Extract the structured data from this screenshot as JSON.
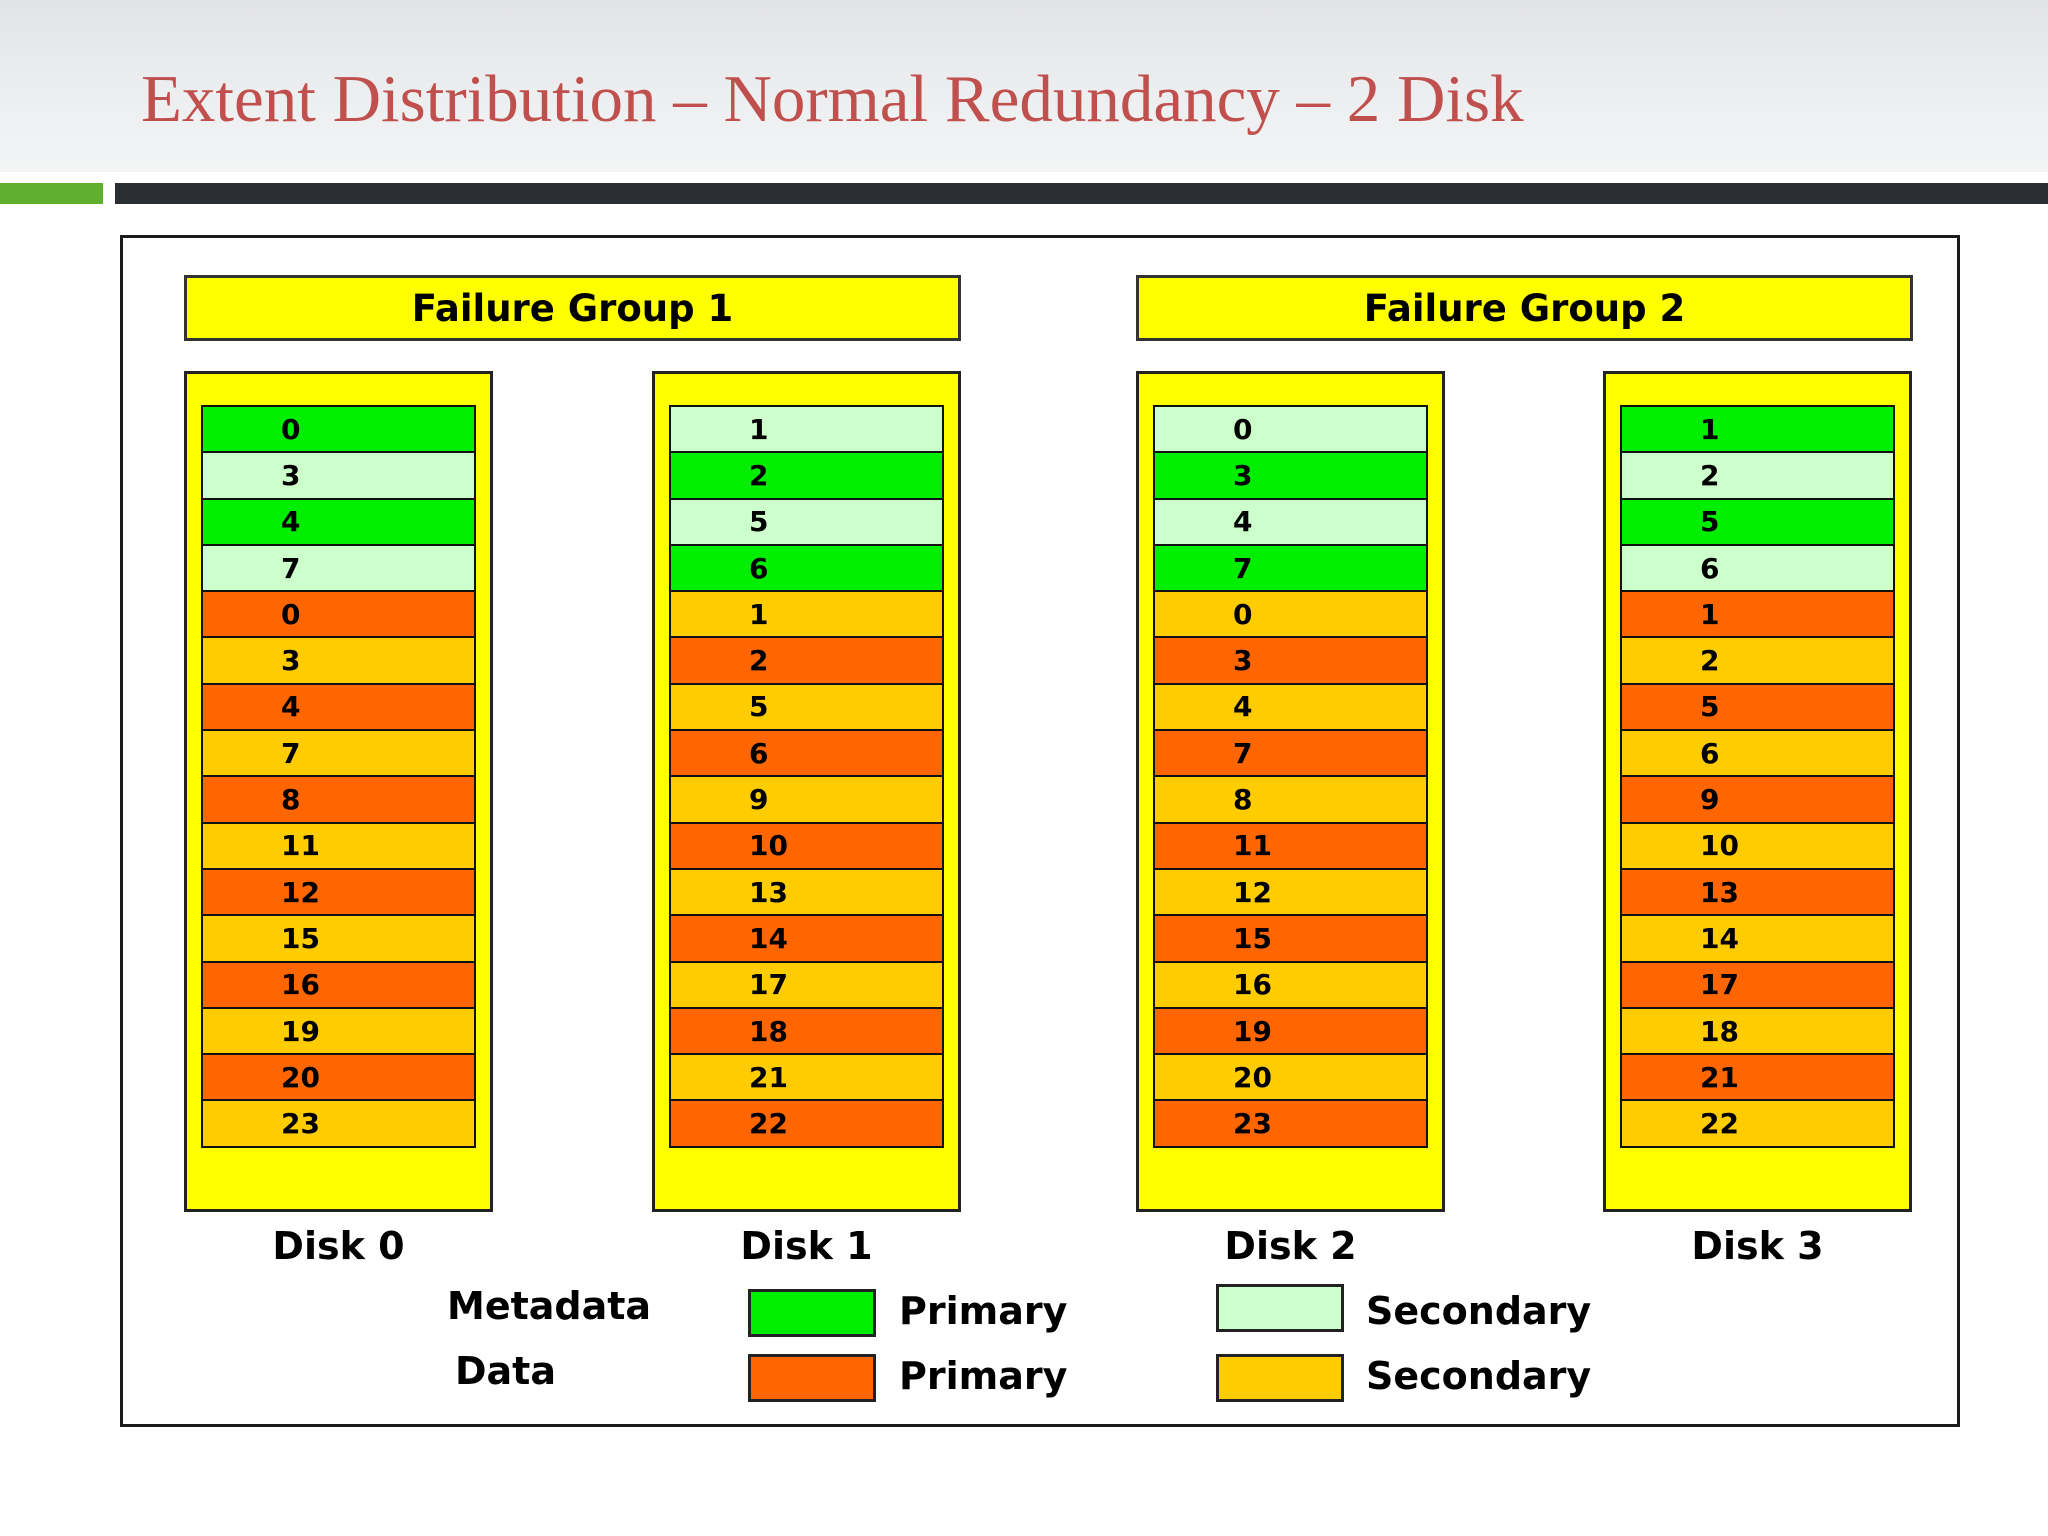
{
  "slide_title": "Extent Distribution – Normal Redundancy – 2 Disk",
  "failure_groups": [
    "Failure Group 1",
    "Failure Group 2"
  ],
  "colors": {
    "metadata_primary": "#00ee00",
    "metadata_secondary": "#ccffcc",
    "data_primary": "#ff6600",
    "data_secondary": "#ffcc00",
    "group_fill": "#ffff00",
    "title": "#c0504d"
  },
  "disks": [
    {
      "label": "Disk 0",
      "extents": [
        {
          "n": "0",
          "t": "mp"
        },
        {
          "n": "3",
          "t": "ms"
        },
        {
          "n": "4",
          "t": "mp"
        },
        {
          "n": "7",
          "t": "ms"
        },
        {
          "n": "0",
          "t": "dp"
        },
        {
          "n": "3",
          "t": "ds"
        },
        {
          "n": "4",
          "t": "dp"
        },
        {
          "n": "7",
          "t": "ds"
        },
        {
          "n": "8",
          "t": "dp"
        },
        {
          "n": "11",
          "t": "ds"
        },
        {
          "n": "12",
          "t": "dp"
        },
        {
          "n": "15",
          "t": "ds"
        },
        {
          "n": "16",
          "t": "dp"
        },
        {
          "n": "19",
          "t": "ds"
        },
        {
          "n": "20",
          "t": "dp"
        },
        {
          "n": "23",
          "t": "ds"
        }
      ]
    },
    {
      "label": "Disk 1",
      "extents": [
        {
          "n": "1",
          "t": "ms"
        },
        {
          "n": "2",
          "t": "mp"
        },
        {
          "n": "5",
          "t": "ms"
        },
        {
          "n": "6",
          "t": "mp"
        },
        {
          "n": "1",
          "t": "ds"
        },
        {
          "n": "2",
          "t": "dp"
        },
        {
          "n": "5",
          "t": "ds"
        },
        {
          "n": "6",
          "t": "dp"
        },
        {
          "n": "9",
          "t": "ds"
        },
        {
          "n": "10",
          "t": "dp"
        },
        {
          "n": "13",
          "t": "ds"
        },
        {
          "n": "14",
          "t": "dp"
        },
        {
          "n": "17",
          "t": "ds"
        },
        {
          "n": "18",
          "t": "dp"
        },
        {
          "n": "21",
          "t": "ds"
        },
        {
          "n": "22",
          "t": "dp"
        }
      ]
    },
    {
      "label": "Disk 2",
      "extents": [
        {
          "n": "0",
          "t": "ms"
        },
        {
          "n": "3",
          "t": "mp"
        },
        {
          "n": "4",
          "t": "ms"
        },
        {
          "n": "7",
          "t": "mp"
        },
        {
          "n": "0",
          "t": "ds"
        },
        {
          "n": "3",
          "t": "dp"
        },
        {
          "n": "4",
          "t": "ds"
        },
        {
          "n": "7",
          "t": "dp"
        },
        {
          "n": "8",
          "t": "ds"
        },
        {
          "n": "11",
          "t": "dp"
        },
        {
          "n": "12",
          "t": "ds"
        },
        {
          "n": "15",
          "t": "dp"
        },
        {
          "n": "16",
          "t": "ds"
        },
        {
          "n": "19",
          "t": "dp"
        },
        {
          "n": "20",
          "t": "ds"
        },
        {
          "n": "23",
          "t": "dp"
        }
      ]
    },
    {
      "label": "Disk 3",
      "extents": [
        {
          "n": "1",
          "t": "mp"
        },
        {
          "n": "2",
          "t": "ms"
        },
        {
          "n": "5",
          "t": "mp"
        },
        {
          "n": "6",
          "t": "ms"
        },
        {
          "n": "1",
          "t": "dp"
        },
        {
          "n": "2",
          "t": "ds"
        },
        {
          "n": "5",
          "t": "dp"
        },
        {
          "n": "6",
          "t": "ds"
        },
        {
          "n": "9",
          "t": "dp"
        },
        {
          "n": "10",
          "t": "ds"
        },
        {
          "n": "13",
          "t": "dp"
        },
        {
          "n": "14",
          "t": "ds"
        },
        {
          "n": "17",
          "t": "dp"
        },
        {
          "n": "18",
          "t": "ds"
        },
        {
          "n": "21",
          "t": "dp"
        },
        {
          "n": "22",
          "t": "ds"
        }
      ]
    }
  ],
  "legend": {
    "metadata_label": "Metadata",
    "data_label": "Data",
    "primary_label": "Primary",
    "secondary_label": "Secondary"
  }
}
